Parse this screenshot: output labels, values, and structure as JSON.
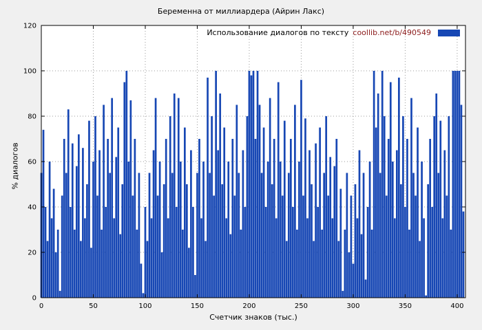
{
  "title": "Беременна от миллиардера (Айрин Лакс)",
  "legend": {
    "text": "Использование диалогов по тексту",
    "link": "coollib.net/b/490549"
  },
  "chart_data": {
    "type": "bar",
    "title": "Беременна от миллиардера (Айрин Лакс)",
    "xlabel": "Счетчик знаков (тыс.)",
    "ylabel": "% диалогов",
    "legend": "Использование диалогов по тексту coollib.net/b/490549",
    "legend_position": "top-right",
    "grid": true,
    "bar_color": "#1747b4",
    "xlim": [
      0,
      408
    ],
    "ylim": [
      0,
      120
    ],
    "xticks": [
      0,
      50,
      100,
      150,
      200,
      250,
      300,
      350,
      400
    ],
    "yticks": [
      0,
      20,
      40,
      60,
      80,
      100,
      120
    ],
    "x_start": 0,
    "x_step": 2,
    "values": [
      55,
      74,
      40,
      25,
      60,
      35,
      48,
      20,
      30,
      3,
      45,
      70,
      55,
      83,
      40,
      68,
      30,
      58,
      72,
      25,
      66,
      35,
      50,
      78,
      22,
      60,
      80,
      45,
      65,
      30,
      85,
      40,
      70,
      55,
      88,
      35,
      62,
      75,
      28,
      50,
      95,
      100,
      60,
      87,
      45,
      70,
      30,
      55,
      15,
      2,
      40,
      25,
      55,
      35,
      65,
      88,
      45,
      60,
      20,
      50,
      70,
      35,
      80,
      55,
      90,
      40,
      88,
      60,
      30,
      75,
      50,
      22,
      65,
      40,
      10,
      55,
      70,
      35,
      60,
      25,
      97,
      55,
      80,
      45,
      100,
      65,
      90,
      50,
      75,
      35,
      60,
      28,
      70,
      45,
      85,
      55,
      30,
      65,
      40,
      80,
      100,
      98,
      100,
      70,
      100,
      85,
      55,
      75,
      40,
      60,
      88,
      50,
      70,
      35,
      95,
      60,
      45,
      78,
      25,
      55,
      70,
      40,
      85,
      30,
      60,
      96,
      45,
      79,
      35,
      65,
      50,
      25,
      68,
      40,
      75,
      30,
      55,
      80,
      45,
      62,
      35,
      58,
      70,
      25,
      48,
      3,
      30,
      55,
      20,
      45,
      15,
      50,
      35,
      65,
      28,
      55,
      8,
      40,
      60,
      30,
      100,
      75,
      90,
      55,
      100,
      80,
      45,
      70,
      95,
      60,
      35,
      65,
      97,
      50,
      80,
      40,
      70,
      30,
      88,
      55,
      45,
      75,
      25,
      60,
      35,
      1,
      50,
      70,
      40,
      80,
      90,
      55,
      78,
      35,
      65,
      45,
      80,
      30,
      100,
      100,
      100,
      100,
      85,
      38
    ]
  }
}
